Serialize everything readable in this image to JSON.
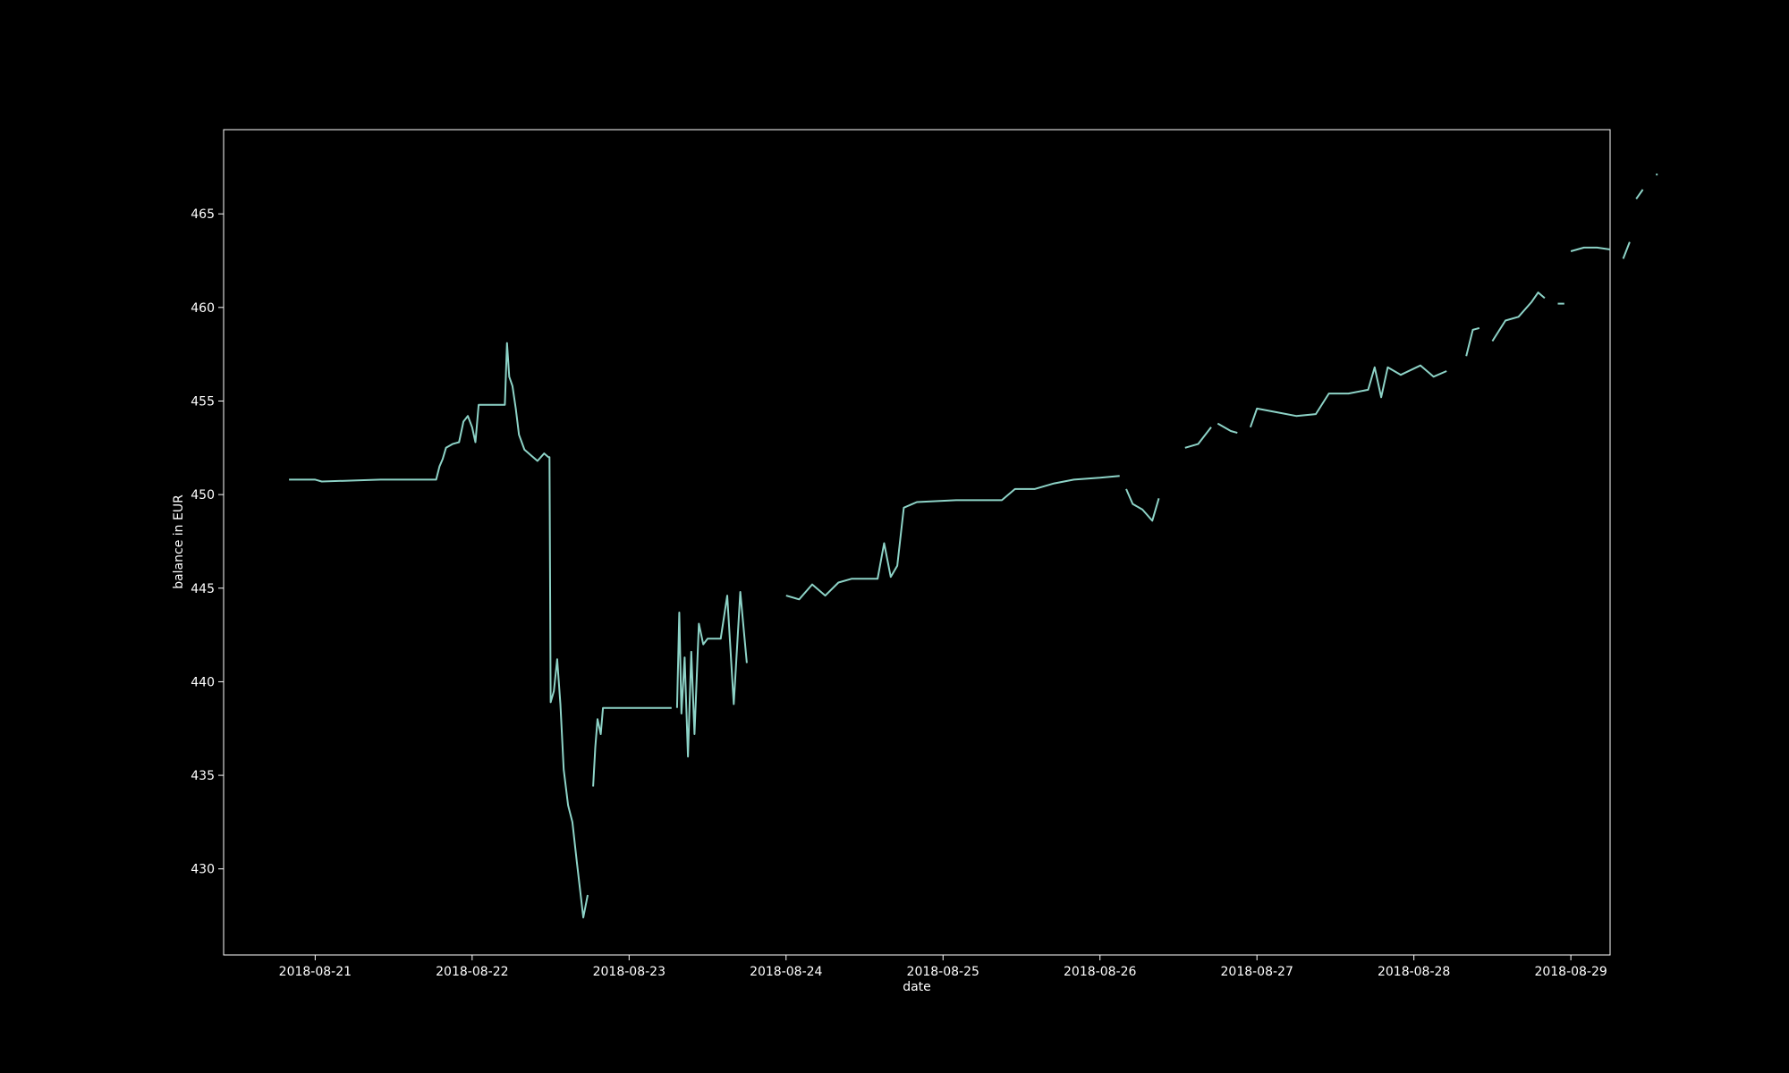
{
  "colors": {
    "background": "#000000",
    "axes": "#ffffff",
    "line": "#8dd3c7"
  },
  "chart_data": {
    "type": "line",
    "title": "",
    "xlabel": "date",
    "ylabel": "balance in EUR",
    "x_type": "datetime",
    "xlim": [
      "2018-08-20 10:00",
      "2018-08-29 06:00"
    ],
    "ylim": [
      425.4,
      469.5
    ],
    "x_ticks": [
      "2018-08-21",
      "2018-08-22",
      "2018-08-23",
      "2018-08-24",
      "2018-08-25",
      "2018-08-26",
      "2018-08-27",
      "2018-08-28",
      "2018-08-29"
    ],
    "y_ticks": [
      430,
      435,
      440,
      445,
      450,
      455,
      460,
      465
    ],
    "grid": false,
    "legend": "none",
    "series": [
      {
        "segments": [
          [
            [
              "2018-08-20 20:00",
              450.8
            ],
            [
              "2018-08-21 00:00",
              450.8
            ],
            [
              "2018-08-21 01:00",
              450.7
            ],
            [
              "2018-08-21 10:00",
              450.8
            ],
            [
              "2018-08-21 18:30",
              450.8
            ],
            [
              "2018-08-21 19:00",
              451.5
            ],
            [
              "2018-08-21 19:30",
              451.9
            ],
            [
              "2018-08-21 20:00",
              452.5
            ],
            [
              "2018-08-21 21:00",
              452.7
            ],
            [
              "2018-08-21 22:00",
              452.8
            ],
            [
              "2018-08-21 22:40",
              453.9
            ],
            [
              "2018-08-21 23:20",
              454.2
            ],
            [
              "2018-08-22 00:00",
              453.6
            ],
            [
              "2018-08-22 00:30",
              452.8
            ],
            [
              "2018-08-22 01:00",
              454.8
            ],
            [
              "2018-08-22 03:00",
              454.8
            ],
            [
              "2018-08-22 05:00",
              454.8
            ],
            [
              "2018-08-22 05:20",
              458.1
            ],
            [
              "2018-08-22 05:40",
              456.3
            ],
            [
              "2018-08-22 06:10",
              455.8
            ],
            [
              "2018-08-22 06:40",
              454.6
            ],
            [
              "2018-08-22 07:10",
              453.2
            ],
            [
              "2018-08-22 08:00",
              452.4
            ],
            [
              "2018-08-22 09:00",
              452.1
            ],
            [
              "2018-08-22 10:00",
              451.8
            ],
            [
              "2018-08-22 11:00",
              452.2
            ],
            [
              "2018-08-22 11:40",
              452.0
            ],
            [
              "2018-08-22 11:50",
              452.0
            ],
            [
              "2018-08-22 12:00",
              438.9
            ],
            [
              "2018-08-22 12:30",
              439.5
            ],
            [
              "2018-08-22 13:00",
              441.2
            ],
            [
              "2018-08-22 13:30",
              438.8
            ],
            [
              "2018-08-22 14:00",
              435.3
            ],
            [
              "2018-08-22 14:40",
              433.4
            ],
            [
              "2018-08-22 15:20",
              432.5
            ],
            [
              "2018-08-22 16:00",
              430.4
            ],
            [
              "2018-08-22 17:00",
              427.4
            ],
            [
              "2018-08-22 17:40",
              428.6
            ]
          ],
          [
            [
              "2018-08-22 18:30",
              434.4
            ],
            [
              "2018-08-22 18:50",
              436.5
            ],
            [
              "2018-08-22 19:10",
              438.0
            ],
            [
              "2018-08-22 19:40",
              437.2
            ],
            [
              "2018-08-22 20:00",
              438.6
            ],
            [
              "2018-08-22 23:00",
              438.6
            ],
            [
              "2018-08-23 06:30",
              438.6
            ]
          ],
          [
            [
              "2018-08-23 07:20",
              438.6
            ],
            [
              "2018-08-23 07:40",
              443.7
            ],
            [
              "2018-08-23 08:00",
              438.3
            ],
            [
              "2018-08-23 08:30",
              441.3
            ],
            [
              "2018-08-23 09:00",
              436.0
            ],
            [
              "2018-08-23 09:30",
              441.6
            ],
            [
              "2018-08-23 10:00",
              437.2
            ],
            [
              "2018-08-23 10:40",
              443.1
            ],
            [
              "2018-08-23 11:20",
              442.0
            ],
            [
              "2018-08-23 12:00",
              442.3
            ],
            [
              "2018-08-23 14:00",
              442.3
            ],
            [
              "2018-08-23 15:00",
              444.6
            ],
            [
              "2018-08-23 16:00",
              438.8
            ],
            [
              "2018-08-23 17:00",
              444.8
            ],
            [
              "2018-08-23 18:00",
              441.0
            ]
          ],
          [
            [
              "2018-08-24 00:00",
              444.6
            ],
            [
              "2018-08-24 02:00",
              444.4
            ],
            [
              "2018-08-24 04:00",
              445.2
            ],
            [
              "2018-08-24 06:00",
              444.6
            ],
            [
              "2018-08-24 08:00",
              445.3
            ],
            [
              "2018-08-24 10:00",
              445.5
            ],
            [
              "2018-08-24 14:00",
              445.5
            ],
            [
              "2018-08-24 15:00",
              447.4
            ],
            [
              "2018-08-24 16:00",
              445.6
            ],
            [
              "2018-08-24 17:00",
              446.2
            ],
            [
              "2018-08-24 18:00",
              449.3
            ],
            [
              "2018-08-24 20:00",
              449.6
            ],
            [
              "2018-08-25 02:00",
              449.7
            ],
            [
              "2018-08-25 09:00",
              449.7
            ],
            [
              "2018-08-25 11:00",
              450.3
            ],
            [
              "2018-08-25 14:00",
              450.3
            ],
            [
              "2018-08-25 17:00",
              450.6
            ],
            [
              "2018-08-25 20:00",
              450.8
            ],
            [
              "2018-08-26 00:00",
              450.9
            ],
            [
              "2018-08-26 03:00",
              451.0
            ]
          ],
          [
            [
              "2018-08-26 04:00",
              450.3
            ],
            [
              "2018-08-26 05:00",
              449.5
            ],
            [
              "2018-08-26 06:30",
              449.2
            ],
            [
              "2018-08-26 08:00",
              448.6
            ],
            [
              "2018-08-26 09:00",
              449.8
            ]
          ],
          [
            [
              "2018-08-26 13:00",
              452.5
            ],
            [
              "2018-08-26 15:00",
              452.7
            ],
            [
              "2018-08-26 17:00",
              453.6
            ]
          ],
          [
            [
              "2018-08-26 18:00",
              453.8
            ],
            [
              "2018-08-26 20:00",
              453.4
            ],
            [
              "2018-08-26 21:00",
              453.3
            ]
          ],
          [
            [
              "2018-08-26 23:00",
              453.6
            ],
            [
              "2018-08-27 00:00",
              454.6
            ],
            [
              "2018-08-27 03:00",
              454.4
            ],
            [
              "2018-08-27 06:00",
              454.2
            ],
            [
              "2018-08-27 09:00",
              454.3
            ],
            [
              "2018-08-27 11:00",
              455.4
            ],
            [
              "2018-08-27 14:00",
              455.4
            ],
            [
              "2018-08-27 17:00",
              455.6
            ],
            [
              "2018-08-27 18:00",
              456.8
            ],
            [
              "2018-08-27 19:00",
              455.2
            ],
            [
              "2018-08-27 20:00",
              456.8
            ],
            [
              "2018-08-27 22:00",
              456.4
            ],
            [
              "2018-08-28 01:00",
              456.9
            ],
            [
              "2018-08-28 03:00",
              456.3
            ],
            [
              "2018-08-28 05:00",
              456.6
            ]
          ],
          [
            [
              "2018-08-28 08:00",
              457.4
            ],
            [
              "2018-08-28 09:00",
              458.8
            ],
            [
              "2018-08-28 10:00",
              458.9
            ]
          ],
          [
            [
              "2018-08-28 12:00",
              458.2
            ],
            [
              "2018-08-28 14:00",
              459.3
            ],
            [
              "2018-08-28 16:00",
              459.5
            ],
            [
              "2018-08-28 18:00",
              460.3
            ],
            [
              "2018-08-28 19:00",
              460.8
            ],
            [
              "2018-08-28 20:00",
              460.5
            ]
          ],
          [
            [
              "2018-08-28 22:00",
              460.2
            ],
            [
              "2018-08-28 23:00",
              460.2
            ]
          ],
          [
            [
              "2018-08-29 00:00",
              463.0
            ],
            [
              "2018-08-29 02:00",
              463.2
            ],
            [
              "2018-08-29 04:00",
              463.2
            ],
            [
              "2018-08-29 06:00",
              463.1
            ]
          ],
          [
            [
              "2018-08-29 08:00",
              462.6
            ],
            [
              "2018-08-29 09:00",
              463.5
            ]
          ],
          [
            [
              "2018-08-29 10:00",
              465.8
            ],
            [
              "2018-08-29 11:00",
              466.3
            ]
          ],
          [
            [
              "2018-08-29 13:00",
              467.1
            ]
          ]
        ]
      }
    ]
  }
}
